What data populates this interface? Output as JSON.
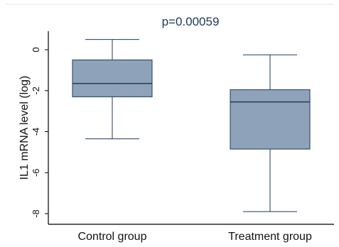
{
  "chart_data": {
    "type": "box",
    "title": "p=0.00059",
    "ylabel": "IL1 mRNA level (log)",
    "xlabel": "",
    "ylim": [
      -8.3,
      0.8
    ],
    "yticks": [
      0,
      -2,
      -4,
      -6,
      -8
    ],
    "ytick_labels": [
      "0",
      "-2",
      "-4",
      "-6",
      "-8"
    ],
    "grid": false,
    "categories": [
      "Control group",
      "Treatment group"
    ],
    "boxes": [
      {
        "category": "Control group",
        "whisker_high": 0.5,
        "q3": -0.5,
        "median": -1.65,
        "q1": -2.3,
        "whisker_low": -4.35
      },
      {
        "category": "Treatment group",
        "whisker_high": -0.25,
        "q3": -1.95,
        "median": -2.55,
        "q1": -4.85,
        "whisker_low": -7.9
      }
    ],
    "colors": {
      "box_fill": "#8ea3b9",
      "box_stroke": "#1f3a5c",
      "axis": "#000000",
      "frame": "#e6e6e6"
    }
  }
}
